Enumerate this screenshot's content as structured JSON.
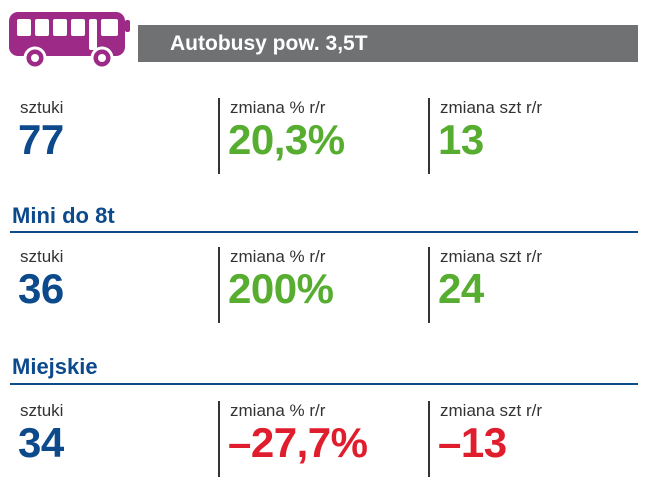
{
  "header": {
    "title": "Autobusy pow. 3,5T",
    "icon": "bus-icon",
    "icon_color": "#9d2a86",
    "bar_color": "#6f7173"
  },
  "colors": {
    "blue": "#0c4a8c",
    "green": "#56ad2f",
    "red": "#e01d2c",
    "label": "#333333"
  },
  "sections": [
    {
      "title": "",
      "stats": [
        {
          "label": "sztuki",
          "value": "77"
        },
        {
          "label": "zmiana % r/r",
          "value": "20,3%"
        },
        {
          "label": "zmiana szt r/r",
          "value": "13"
        }
      ]
    },
    {
      "title": "Mini do 8t",
      "stats": [
        {
          "label": "sztuki",
          "value": "36"
        },
        {
          "label": "zmiana % r/r",
          "value": "200%"
        },
        {
          "label": "zmiana szt r/r",
          "value": "24"
        }
      ]
    },
    {
      "title": "Miejskie",
      "stats": [
        {
          "label": "sztuki",
          "value": "34"
        },
        {
          "label": "zmiana % r/r",
          "value": "–27,7%"
        },
        {
          "label": "zmiana szt r/r",
          "value": "–13"
        }
      ]
    }
  ]
}
